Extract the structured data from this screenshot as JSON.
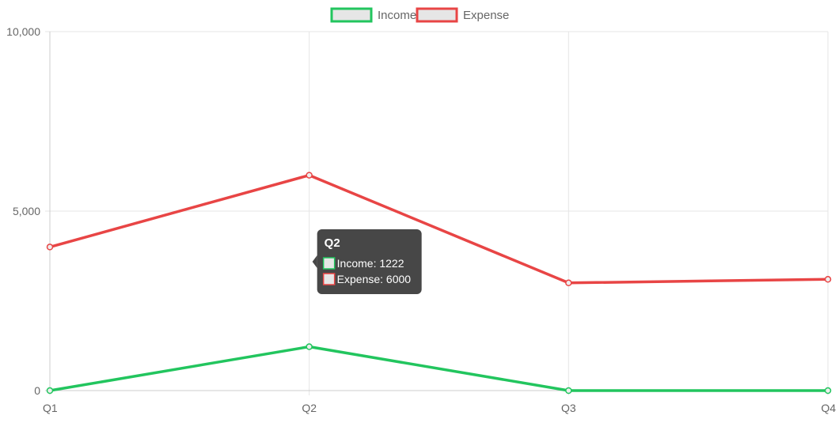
{
  "chart_data": {
    "type": "line",
    "categories": [
      "Q1",
      "Q2",
      "Q3",
      "Q4"
    ],
    "series": [
      {
        "name": "Income",
        "values": [
          0,
          1222,
          0,
          0
        ],
        "color": "#22c55e"
      },
      {
        "name": "Expense",
        "values": [
          4000,
          6000,
          3000,
          3100
        ],
        "color": "#e84545"
      }
    ],
    "title": "",
    "xlabel": "",
    "ylabel": "",
    "ylim": [
      0,
      10000
    ],
    "y_ticks": [
      {
        "value": 0,
        "label": "0"
      },
      {
        "value": 5000,
        "label": "5,000"
      },
      {
        "value": 10000,
        "label": "10,000"
      }
    ],
    "grid": true,
    "legend": "top-center",
    "legend_box_fill": "#e6e6e6",
    "tooltip": {
      "category": "Q2",
      "lines": [
        "Income: 1222",
        "Expense: 6000"
      ]
    }
  }
}
